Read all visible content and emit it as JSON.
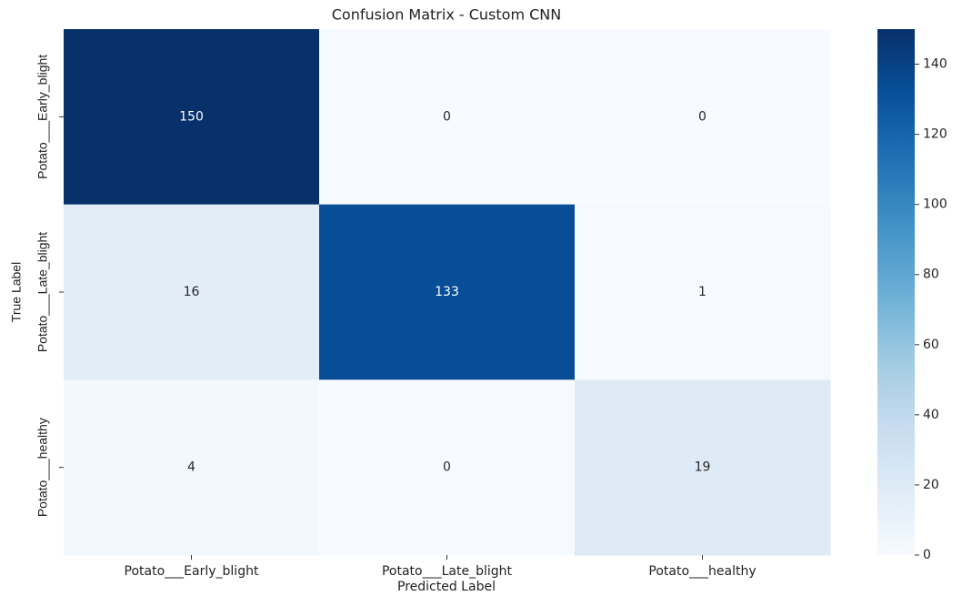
{
  "chart_data": {
    "type": "heatmap",
    "title": "Confusion Matrix - Custom CNN",
    "xlabel": "Predicted Label",
    "ylabel": "True Label",
    "x_categories": [
      "Potato___Early_blight",
      "Potato___Late_blight",
      "Potato___healthy"
    ],
    "y_categories": [
      "Potato___Early_blight",
      "Potato___Late_blight",
      "Potato___healthy"
    ],
    "values": [
      [
        150,
        0,
        0
      ],
      [
        16,
        133,
        1
      ],
      [
        4,
        0,
        19
      ]
    ],
    "colormap": "Blues",
    "clim": [
      0,
      150
    ],
    "cticks": [
      0,
      20,
      40,
      60,
      80,
      100,
      120,
      140
    ]
  }
}
